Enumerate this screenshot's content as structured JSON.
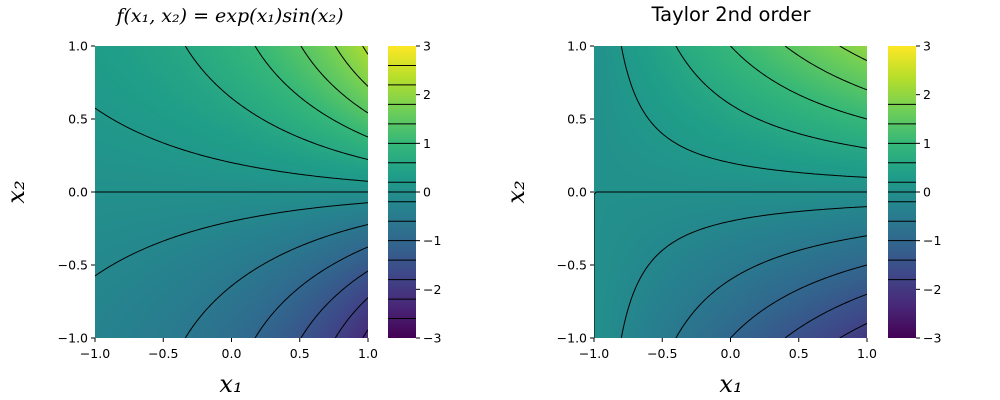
{
  "chart_data": [
    {
      "type": "heatmap",
      "title": "f(x₁, x₂) = exp(x₁)sin(x₂)",
      "title_style": "math",
      "function": "exp(x1)*sin(x2)",
      "xlabel": "x₁",
      "ylabel": "x₂",
      "xlim": [
        -1.0,
        1.0
      ],
      "ylim": [
        -1.0,
        1.0
      ],
      "xticks": [
        "−1.0",
        "−0.5",
        "0.0",
        "0.5",
        "1.0"
      ],
      "xtick_values": [
        -1.0,
        -0.5,
        0.0,
        0.5,
        1.0
      ],
      "yticks": [
        "−1.0",
        "−0.5",
        "0.0",
        "0.5",
        "1.0"
      ],
      "ytick_values": [
        -1.0,
        -0.5,
        0.0,
        0.5,
        1.0
      ],
      "colorbar": {
        "colormap": "viridis",
        "clim": [
          -3,
          3
        ],
        "ticks": [
          "−3",
          "−2",
          "−1",
          "0",
          "1",
          "2",
          "3"
        ],
        "tick_values": [
          -3,
          -2,
          -1,
          0,
          1,
          2,
          3
        ]
      },
      "contour_levels": [
        -2.6,
        -2.2,
        -1.8,
        -1.4,
        -1.0,
        -0.6,
        -0.2,
        0.0,
        0.2,
        0.6,
        1.0,
        1.4,
        1.8,
        2.2,
        2.6
      ],
      "grid": false
    },
    {
      "type": "heatmap",
      "title": "Taylor 2nd order",
      "title_style": "plain",
      "function": "x2 + x1*x2",
      "xlabel": "x₁",
      "ylabel": "x₂",
      "xlim": [
        -1.0,
        1.0
      ],
      "ylim": [
        -1.0,
        1.0
      ],
      "xticks": [
        "−1.0",
        "−0.5",
        "0.0",
        "0.5",
        "1.0"
      ],
      "xtick_values": [
        -1.0,
        -0.5,
        0.0,
        0.5,
        1.0
      ],
      "yticks": [
        "−1.0",
        "−0.5",
        "0.0",
        "0.5",
        "1.0"
      ],
      "ytick_values": [
        -1.0,
        -0.5,
        0.0,
        0.5,
        1.0
      ],
      "colorbar": {
        "colormap": "viridis",
        "clim": [
          -3,
          3
        ],
        "ticks": [
          "−3",
          "−2",
          "−1",
          "0",
          "1",
          "2",
          "3"
        ],
        "tick_values": [
          -3,
          -2,
          -1,
          0,
          1,
          2,
          3
        ]
      },
      "contour_levels": [
        -1.8,
        -1.4,
        -1.0,
        -0.6,
        -0.2,
        0.0,
        0.2,
        0.6,
        1.0,
        1.4,
        1.8
      ],
      "grid": false
    }
  ]
}
